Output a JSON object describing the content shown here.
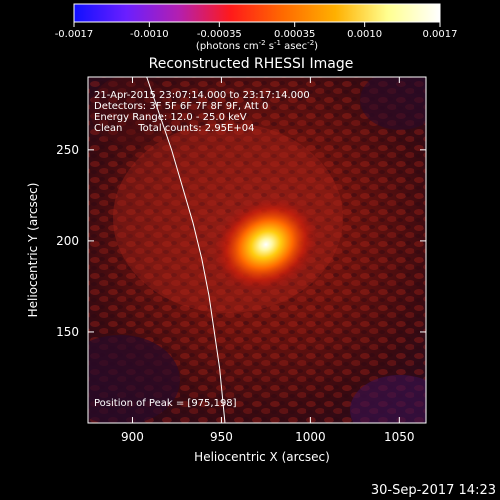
{
  "chart_data": {
    "type": "heatmap",
    "title": "Reconstructed RHESSI Image",
    "xlabel": "Heliocentric X (arcsec)",
    "ylabel": "Heliocentric Y (arcsec)",
    "xlim": [
      875,
      1065
    ],
    "ylim": [
      100,
      290
    ],
    "xticks": [
      900,
      950,
      1000,
      1050
    ],
    "yticks": [
      150,
      200,
      250
    ],
    "xtick_labels": [
      "900",
      "950",
      "1000",
      "1050"
    ],
    "ytick_labels": [
      "150",
      "200",
      "250"
    ],
    "colorbar": {
      "range": [
        -0.0017,
        0.0017
      ],
      "tick_labels": [
        "-0.0017",
        "-0.0010",
        "-0.00035",
        "0.00035",
        "0.0010",
        "0.0017"
      ],
      "unit_parts": [
        "(photons cm",
        "-2",
        " s",
        "-1",
        " asec",
        "-2",
        ")"
      ],
      "colormap": [
        "#1010ff",
        "#6a1fff",
        "#b31fb0",
        "#ff1a1a",
        "#ff6a00",
        "#ffb000",
        "#ffff90",
        "#ffffff"
      ]
    },
    "annotations": [
      "21-Apr-2015 23:07:14.000 to 23:17:14.000",
      "Detectors: 3F 5F 6F 7F 8F 9F, Att 0",
      "Energy Range: 12.0 - 25.0 keV",
      "Clean     Total counts: 2.95E+04"
    ],
    "peak_label": "Position of Peak = [975,198]",
    "peak": [
      975,
      198
    ],
    "limb_curve": [
      [
        908,
        290
      ],
      [
        915,
        270
      ],
      [
        922,
        250
      ],
      [
        928,
        230
      ],
      [
        934,
        210
      ],
      [
        939,
        190
      ],
      [
        943,
        170
      ],
      [
        946,
        150
      ],
      [
        949,
        130
      ],
      [
        951,
        110
      ],
      [
        952,
        100
      ]
    ]
  },
  "footer": {
    "timestamp": "30-Sep-2017 14:23"
  }
}
